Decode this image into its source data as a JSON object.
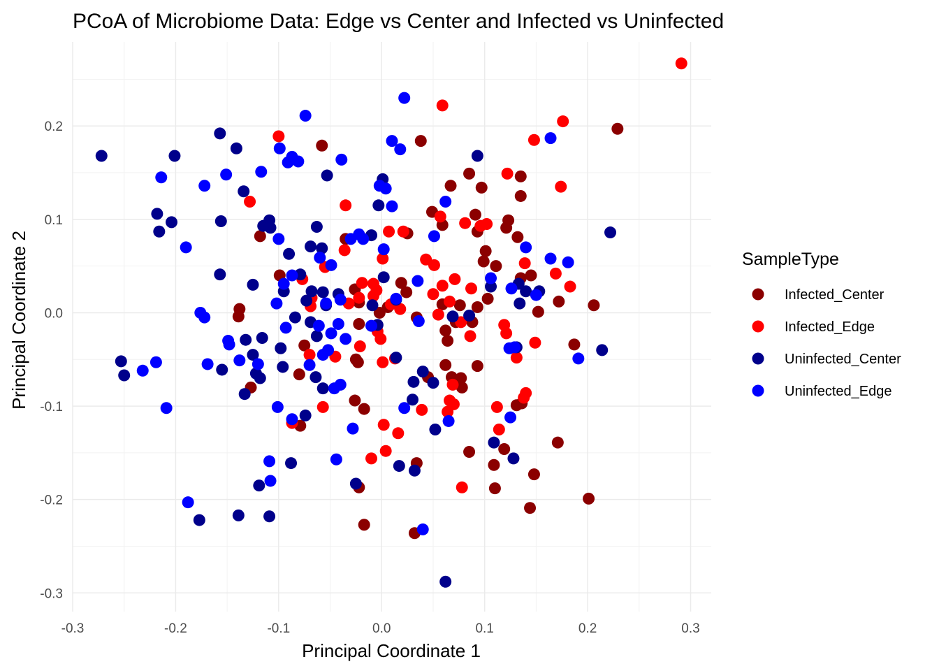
{
  "chart_data": {
    "type": "scatter",
    "title": "PCoA of Microbiome Data: Edge vs Center and Infected vs Uninfected",
    "xlabel": "Principal Coordinate 1",
    "ylabel": "Principal Coordinate 2",
    "xlim": [
      -0.3,
      0.32
    ],
    "ylim": [
      -0.32,
      0.29
    ],
    "x_ticks": [
      -0.3,
      -0.2,
      -0.1,
      0.0,
      0.1,
      0.2,
      0.3
    ],
    "x_tick_labels": [
      "-0.3",
      "-0.2",
      "-0.1",
      "0.0",
      "0.1",
      "0.2",
      "0.3"
    ],
    "y_ticks": [
      -0.3,
      -0.2,
      -0.1,
      0.0,
      0.1,
      0.2
    ],
    "y_tick_labels": [
      "-0.3",
      "-0.2",
      "-0.1",
      "0.0",
      "0.1",
      "0.2"
    ],
    "grid": true,
    "legend": {
      "title": "SampleType",
      "placement": "right"
    },
    "series": [
      {
        "name": "Infected_Center",
        "color": "#8b0000",
        "points": [
          [
            0.229,
            0.197
          ],
          [
            0.038,
            0.184
          ],
          [
            -0.058,
            0.179
          ],
          [
            0.085,
            0.149
          ],
          [
            0.067,
            0.136
          ],
          [
            0.097,
            0.134
          ],
          [
            0.135,
            0.146
          ],
          [
            0.135,
            0.125
          ],
          [
            0.049,
            0.108
          ],
          [
            0.091,
            0.105
          ],
          [
            0.059,
            0.094
          ],
          [
            0.123,
            0.099
          ],
          [
            0.121,
            0.091
          ],
          [
            0.093,
            0.087
          ],
          [
            -0.118,
            0.082
          ],
          [
            -0.035,
            0.079
          ],
          [
            0.025,
            0.085
          ],
          [
            0.132,
            0.081
          ],
          [
            0.101,
            0.066
          ],
          [
            0.099,
            0.055
          ],
          [
            0.111,
            0.05
          ],
          [
            0.145,
            0.04
          ],
          [
            0.135,
            0.037
          ],
          [
            -0.099,
            0.04
          ],
          [
            -0.026,
            0.025
          ],
          [
            0.019,
            0.032
          ],
          [
            0.024,
            0.022
          ],
          [
            -0.022,
            0.011
          ],
          [
            0.006,
            0.006
          ],
          [
            0.059,
            0.009
          ],
          [
            0.076,
            0.008
          ],
          [
            0.103,
            0.015
          ],
          [
            0.093,
            0.006
          ],
          [
            0.172,
            0.012
          ],
          [
            0.206,
            0.008
          ],
          [
            0.152,
            0.001
          ],
          [
            -0.138,
            0.004
          ],
          [
            -0.139,
            -0.004
          ],
          [
            -0.002,
            0.0
          ],
          [
            0.034,
            -0.005
          ],
          [
            0.072,
            -0.01
          ],
          [
            0.088,
            -0.01
          ],
          [
            -0.022,
            -0.012
          ],
          [
            0.062,
            -0.019
          ],
          [
            0.064,
            -0.03
          ],
          [
            0.187,
            -0.034
          ],
          [
            -0.075,
            -0.035
          ],
          [
            -0.023,
            -0.053
          ],
          [
            -0.025,
            -0.05
          ],
          [
            0.062,
            -0.056
          ],
          [
            0.093,
            -0.057
          ],
          [
            -0.08,
            -0.066
          ],
          [
            0.045,
            -0.069
          ],
          [
            0.068,
            -0.069
          ],
          [
            0.077,
            -0.07
          ],
          [
            0.078,
            -0.08
          ],
          [
            -0.127,
            -0.08
          ],
          [
            -0.026,
            -0.094
          ],
          [
            -0.017,
            -0.103
          ],
          [
            0.136,
            -0.097
          ],
          [
            0.131,
            -0.099
          ],
          [
            -0.079,
            -0.121
          ],
          [
            0.085,
            -0.149
          ],
          [
            0.119,
            -0.146
          ],
          [
            0.171,
            -0.139
          ],
          [
            0.109,
            -0.163
          ],
          [
            0.034,
            -0.161
          ],
          [
            0.148,
            -0.173
          ],
          [
            0.11,
            -0.188
          ],
          [
            -0.022,
            -0.187
          ],
          [
            0.201,
            -0.199
          ],
          [
            0.144,
            -0.209
          ],
          [
            -0.017,
            -0.227
          ],
          [
            0.032,
            -0.236
          ]
        ]
      },
      {
        "name": "Infected_Edge",
        "color": "#ff0000",
        "points": [
          [
            0.291,
            0.267
          ],
          [
            0.059,
            0.222
          ],
          [
            0.176,
            0.205
          ],
          [
            0.148,
            0.185
          ],
          [
            -0.1,
            0.189
          ],
          [
            0.122,
            0.149
          ],
          [
            0.174,
            0.135
          ],
          [
            -0.128,
            0.119
          ],
          [
            -0.035,
            0.115
          ],
          [
            0.057,
            0.103
          ],
          [
            0.081,
            0.096
          ],
          [
            0.096,
            0.093
          ],
          [
            0.102,
            0.095
          ],
          [
            0.007,
            0.087
          ],
          [
            0.021,
            0.087
          ],
          [
            -0.036,
            0.067
          ],
          [
            0.001,
            0.058
          ],
          [
            0.043,
            0.057
          ],
          [
            0.051,
            0.051
          ],
          [
            0.139,
            0.053
          ],
          [
            0.169,
            0.042
          ],
          [
            -0.077,
            0.036
          ],
          [
            0.071,
            0.036
          ],
          [
            -0.055,
            0.049
          ],
          [
            0.059,
            0.029
          ],
          [
            0.087,
            0.026
          ],
          [
            0.183,
            0.028
          ],
          [
            -0.068,
            0.016
          ],
          [
            -0.008,
            0.018
          ],
          [
            -0.005,
            0.024
          ],
          [
            -0.022,
            0.016
          ],
          [
            -0.008,
            0.031
          ],
          [
            -0.019,
            0.032
          ],
          [
            0.05,
            0.02
          ],
          [
            0.066,
            0.012
          ],
          [
            0.009,
            0.009
          ],
          [
            -0.032,
            0.01
          ],
          [
            -0.069,
            0.007
          ],
          [
            0.018,
            0.004
          ],
          [
            0.055,
            -0.002
          ],
          [
            0.077,
            -0.01
          ],
          [
            0.119,
            -0.013
          ],
          [
            0.121,
            -0.022
          ],
          [
            0.086,
            -0.025
          ],
          [
            -0.004,
            -0.02
          ],
          [
            -0.001,
            -0.028
          ],
          [
            -0.021,
            -0.036
          ],
          [
            -0.045,
            -0.047
          ],
          [
            0.001,
            -0.053
          ],
          [
            0.013,
            -0.049
          ],
          [
            -0.07,
            -0.045
          ],
          [
            0.131,
            -0.048
          ],
          [
            0.149,
            -0.032
          ],
          [
            0.069,
            -0.077
          ],
          [
            0.066,
            -0.094
          ],
          [
            0.07,
            -0.098
          ],
          [
            0.064,
            -0.106
          ],
          [
            0.138,
            -0.091
          ],
          [
            0.14,
            -0.086
          ],
          [
            0.039,
            -0.104
          ],
          [
            0.112,
            -0.101
          ],
          [
            -0.057,
            -0.101
          ],
          [
            -0.087,
            -0.118
          ],
          [
            0.114,
            -0.125
          ],
          [
            0.002,
            -0.12
          ],
          [
            0.016,
            -0.129
          ],
          [
            0.004,
            -0.148
          ],
          [
            -0.01,
            -0.156
          ],
          [
            0.078,
            -0.187
          ]
        ]
      },
      {
        "name": "Uninfected_Center",
        "color": "#00008b",
        "points": [
          [
            -0.272,
            0.168
          ],
          [
            -0.157,
            0.192
          ],
          [
            -0.141,
            0.176
          ],
          [
            0.093,
            0.168
          ],
          [
            -0.201,
            0.168
          ],
          [
            -0.053,
            0.147
          ],
          [
            0.001,
            0.143
          ],
          [
            -0.218,
            0.106
          ],
          [
            -0.204,
            0.097
          ],
          [
            -0.156,
            0.098
          ],
          [
            -0.108,
            0.091
          ],
          [
            -0.115,
            0.093
          ],
          [
            -0.109,
            0.099
          ],
          [
            -0.003,
            0.115
          ],
          [
            -0.216,
            0.087
          ],
          [
            -0.134,
            0.13
          ],
          [
            -0.063,
            0.092
          ],
          [
            0.222,
            0.086
          ],
          [
            -0.01,
            0.083
          ],
          [
            -0.09,
            0.063
          ],
          [
            -0.069,
            0.071
          ],
          [
            -0.058,
            0.069
          ],
          [
            -0.157,
            0.041
          ],
          [
            -0.125,
            0.03
          ],
          [
            -0.095,
            0.023
          ],
          [
            -0.068,
            0.023
          ],
          [
            -0.057,
            0.022
          ],
          [
            -0.042,
            0.02
          ],
          [
            -0.079,
            0.041
          ],
          [
            0.002,
            0.038
          ],
          [
            -0.009,
            0.008
          ],
          [
            0.014,
            0.014
          ],
          [
            -0.073,
            0.013
          ],
          [
            -0.054,
            0.008
          ],
          [
            0.106,
            0.028
          ],
          [
            0.133,
            0.031
          ],
          [
            0.134,
            0.01
          ],
          [
            0.153,
            0.023
          ],
          [
            0.14,
            0.023
          ],
          [
            -0.084,
            -0.005
          ],
          [
            -0.069,
            -0.01
          ],
          [
            -0.098,
            -0.038
          ],
          [
            -0.125,
            -0.045
          ],
          [
            -0.132,
            -0.029
          ],
          [
            -0.116,
            -0.027
          ],
          [
            -0.063,
            -0.025
          ],
          [
            -0.004,
            -0.013
          ],
          [
            0.069,
            -0.004
          ],
          [
            0.085,
            -0.003
          ],
          [
            -0.096,
            -0.058
          ],
          [
            -0.118,
            -0.07
          ],
          [
            -0.064,
            -0.069
          ],
          [
            -0.057,
            -0.081
          ],
          [
            -0.133,
            -0.087
          ],
          [
            -0.122,
            -0.065
          ],
          [
            -0.253,
            -0.052
          ],
          [
            -0.25,
            -0.067
          ],
          [
            -0.155,
            -0.061
          ],
          [
            0.014,
            -0.048
          ],
          [
            0.031,
            -0.074
          ],
          [
            0.04,
            -0.063
          ],
          [
            0.05,
            -0.075
          ],
          [
            0.03,
            -0.093
          ],
          [
            -0.074,
            -0.11
          ],
          [
            0.052,
            -0.125
          ],
          [
            0.214,
            -0.04
          ],
          [
            0.131,
            -0.037
          ],
          [
            -0.088,
            -0.161
          ],
          [
            0.017,
            -0.164
          ],
          [
            0.032,
            -0.169
          ],
          [
            -0.025,
            -0.183
          ],
          [
            0.109,
            -0.139
          ],
          [
            0.128,
            -0.156
          ],
          [
            -0.119,
            -0.185
          ],
          [
            -0.177,
            -0.222
          ],
          [
            -0.139,
            -0.217
          ],
          [
            -0.109,
            -0.218
          ],
          [
            0.062,
            -0.288
          ]
        ]
      },
      {
        "name": "Uninfected_Edge",
        "color": "#0000ff",
        "points": [
          [
            0.022,
            0.23
          ],
          [
            -0.074,
            0.211
          ],
          [
            0.01,
            0.184
          ],
          [
            0.164,
            0.187
          ],
          [
            0.018,
            0.175
          ],
          [
            -0.099,
            0.176
          ],
          [
            -0.091,
            0.161
          ],
          [
            -0.081,
            0.162
          ],
          [
            -0.087,
            0.167
          ],
          [
            -0.039,
            0.164
          ],
          [
            -0.214,
            0.145
          ],
          [
            -0.151,
            0.148
          ],
          [
            -0.117,
            0.151
          ],
          [
            -0.172,
            0.136
          ],
          [
            -0.002,
            0.136
          ],
          [
            0.004,
            0.133
          ],
          [
            0.01,
            0.114
          ],
          [
            0.062,
            0.119
          ],
          [
            -0.018,
            0.079
          ],
          [
            -0.022,
            0.084
          ],
          [
            -0.03,
            0.079
          ],
          [
            -0.1,
            0.079
          ],
          [
            0.051,
            0.082
          ],
          [
            -0.19,
            0.07
          ],
          [
            0.002,
            0.068
          ],
          [
            -0.06,
            0.059
          ],
          [
            -0.049,
            0.051
          ],
          [
            -0.087,
            0.04
          ],
          [
            -0.095,
            0.031
          ],
          [
            0.035,
            0.034
          ],
          [
            0.106,
            0.037
          ],
          [
            0.14,
            0.07
          ],
          [
            0.164,
            0.058
          ],
          [
            0.181,
            0.054
          ],
          [
            0.126,
            0.026
          ],
          [
            0.15,
            0.019
          ],
          [
            -0.102,
            0.01
          ],
          [
            -0.04,
            0.014
          ],
          [
            -0.054,
            0.01
          ],
          [
            0.014,
            0.015
          ],
          [
            -0.176,
            0.0
          ],
          [
            -0.172,
            -0.005
          ],
          [
            -0.093,
            -0.016
          ],
          [
            -0.061,
            -0.014
          ],
          [
            -0.049,
            -0.022
          ],
          [
            -0.042,
            -0.012
          ],
          [
            -0.035,
            -0.028
          ],
          [
            -0.01,
            -0.014
          ],
          [
            -0.149,
            -0.03
          ],
          [
            -0.148,
            -0.034
          ],
          [
            -0.052,
            -0.04
          ],
          [
            -0.057,
            -0.045
          ],
          [
            0.036,
            -0.009
          ],
          [
            0.124,
            -0.038
          ],
          [
            0.129,
            -0.037
          ],
          [
            0.191,
            -0.049
          ],
          [
            -0.219,
            -0.053
          ],
          [
            -0.232,
            -0.062
          ],
          [
            -0.169,
            -0.055
          ],
          [
            -0.138,
            -0.051
          ],
          [
            -0.12,
            -0.055
          ],
          [
            -0.07,
            -0.056
          ],
          [
            -0.04,
            -0.077
          ],
          [
            -0.046,
            -0.081
          ],
          [
            0.022,
            -0.102
          ],
          [
            -0.101,
            -0.101
          ],
          [
            -0.209,
            -0.102
          ],
          [
            0.065,
            -0.116
          ],
          [
            0.125,
            -0.112
          ],
          [
            -0.087,
            -0.114
          ],
          [
            -0.028,
            -0.124
          ],
          [
            -0.044,
            -0.157
          ],
          [
            -0.109,
            -0.159
          ],
          [
            -0.108,
            -0.18
          ],
          [
            -0.188,
            -0.203
          ],
          [
            0.04,
            -0.232
          ]
        ]
      }
    ]
  }
}
